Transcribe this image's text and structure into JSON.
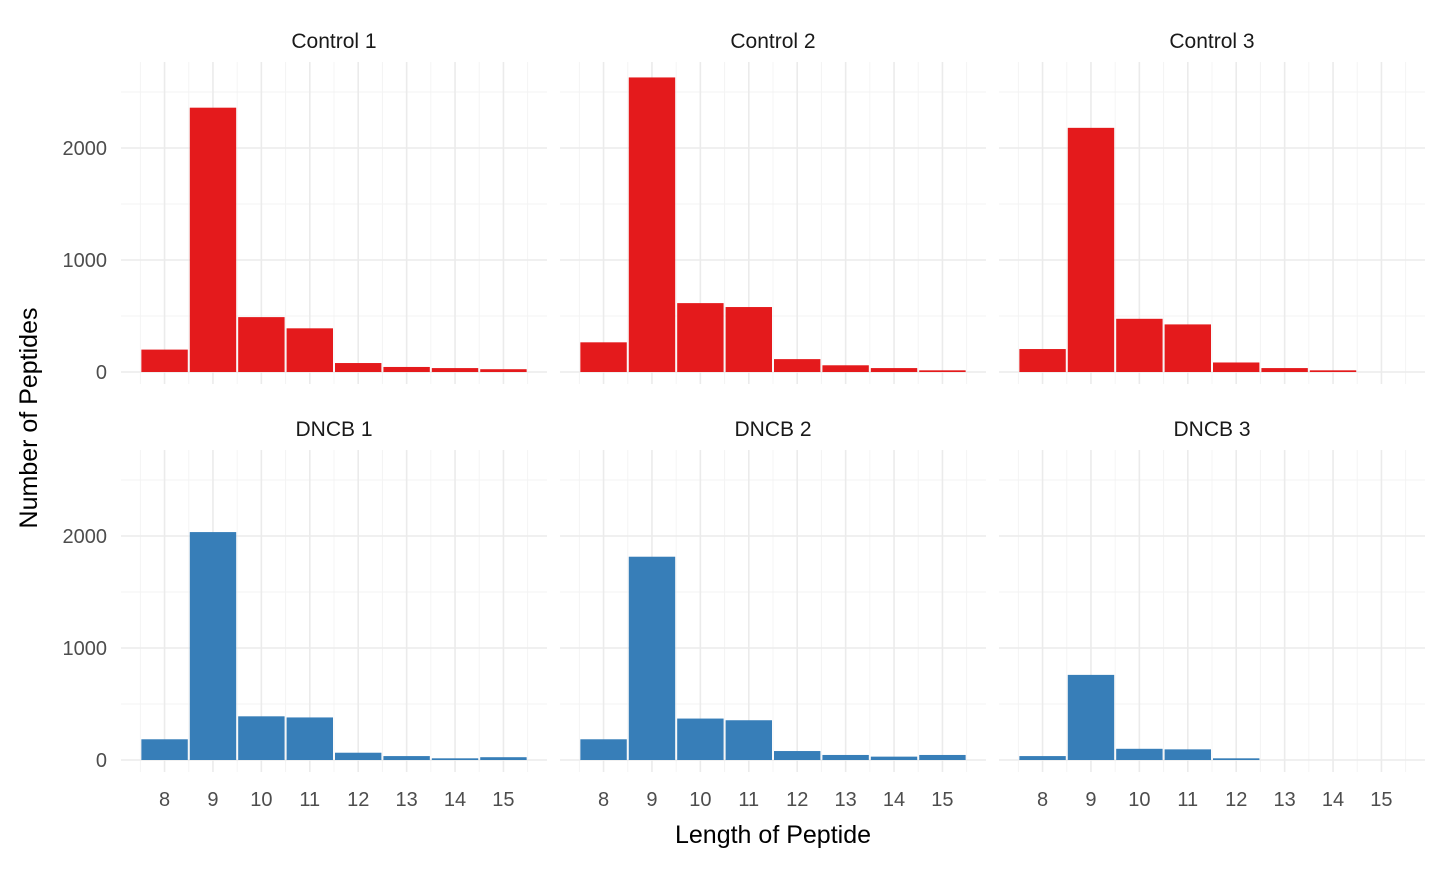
{
  "chart_data": {
    "type": "bar",
    "facet_layout": "grid 2 rows x 3 columns, shared axes",
    "xlabel": "Length of Peptide",
    "ylabel": "Number of Peptides",
    "x_categories": [
      8,
      9,
      10,
      11,
      12,
      13,
      14,
      15
    ],
    "x_tick_labels": [
      "8",
      "9",
      "10",
      "11",
      "12",
      "13",
      "14",
      "15"
    ],
    "y_ticks": [
      0,
      1000,
      2000
    ],
    "y_tick_labels": [
      "0",
      "1000",
      "2000"
    ],
    "ylim": [
      0,
      2760
    ],
    "grid": true,
    "legend": "none",
    "colors": {
      "Control": "#e41a1c",
      "DNCB": "#377eb8",
      "gridline": "#ebebeb"
    },
    "panels": [
      {
        "title": "Control 1",
        "group": "Control",
        "values": [
          200,
          2360,
          490,
          390,
          80,
          45,
          35,
          25
        ]
      },
      {
        "title": "Control 2",
        "group": "Control",
        "values": [
          265,
          2630,
          615,
          580,
          115,
          60,
          35,
          15
        ]
      },
      {
        "title": "Control 3",
        "group": "Control",
        "values": [
          205,
          2180,
          475,
          425,
          85,
          35,
          15,
          0
        ]
      },
      {
        "title": "DNCB 1",
        "group": "DNCB",
        "values": [
          185,
          2035,
          390,
          380,
          65,
          35,
          15,
          25
        ]
      },
      {
        "title": "DNCB 2",
        "group": "DNCB",
        "values": [
          185,
          1815,
          370,
          355,
          80,
          45,
          30,
          45
        ]
      },
      {
        "title": "DNCB 3",
        "group": "DNCB",
        "values": [
          35,
          760,
          100,
          95,
          15,
          0,
          0,
          0
        ]
      }
    ]
  }
}
